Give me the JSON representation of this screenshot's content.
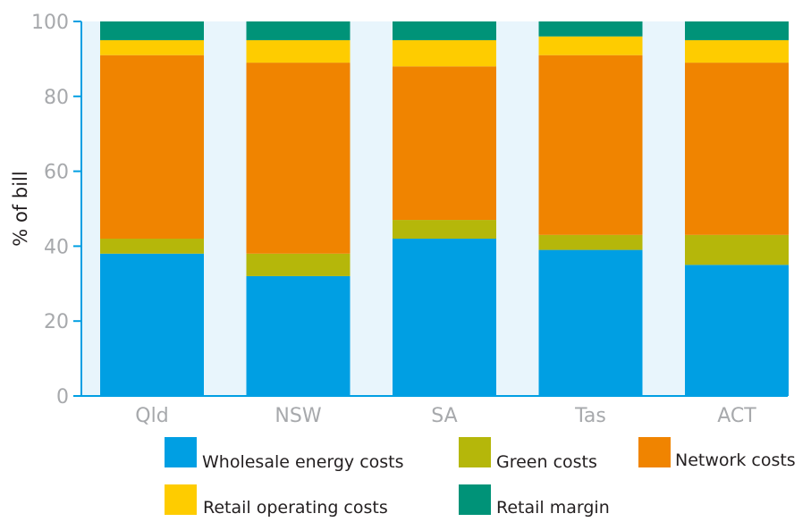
{
  "chart_data": {
    "type": "bar",
    "stacked": true,
    "title": "",
    "xlabel": "",
    "ylabel": "% of bill",
    "ylim": [
      0,
      100
    ],
    "yticks": [
      "0",
      "20",
      "40",
      "60",
      "80",
      "100"
    ],
    "categories": [
      "Qld",
      "NSW",
      "SA",
      "Tas",
      "ACT"
    ],
    "series": [
      {
        "name": "Wholesale energy costs",
        "color": "#009fe3",
        "values": [
          38,
          32,
          42,
          39,
          35
        ]
      },
      {
        "name": "Green costs",
        "color": "#b5b70a",
        "values": [
          4,
          6,
          5,
          4,
          8
        ]
      },
      {
        "name": "Network costs",
        "color": "#f08400",
        "values": [
          49,
          51,
          41,
          48,
          46
        ]
      },
      {
        "name": "Retail operating costs",
        "color": "#fecc00",
        "values": [
          4,
          6,
          7,
          5,
          6
        ]
      },
      {
        "name": "Retail margin",
        "color": "#009378",
        "values": [
          5,
          5,
          5,
          4,
          5
        ]
      }
    ],
    "grid": false,
    "background_color": "#e8f5fc",
    "axis_color": "#009fe3",
    "legend_position": "bottom"
  }
}
